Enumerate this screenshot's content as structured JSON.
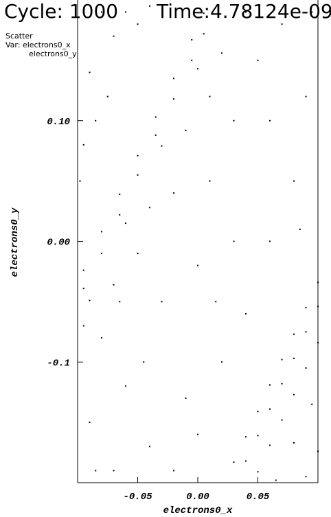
{
  "chart_data": {
    "type": "scatter",
    "title": "Cycle: 1000",
    "subtitle": "Time:4.78124e-09",
    "annotations": [
      "Scatter",
      "Var: electrons0_x",
      "electrons0_y"
    ],
    "xlabel": "electrons0_x",
    "ylabel": "electrons0_y",
    "xlim": [
      -0.1,
      0.1
    ],
    "ylim": [
      -0.2,
      0.2
    ],
    "xticks": [
      -0.05,
      {
        "value": 0,
        "label": "0.00"
      },
      0.05
    ],
    "yticks": [
      -0.1,
      {
        "value": 0,
        "label": "0.00"
      },
      {
        "value": 0.1,
        "label": "0.10"
      }
    ],
    "color": "#000000",
    "x": [
      -0.095,
      -0.095,
      -0.08,
      -0.08,
      -0.065,
      -0.065,
      -0.05,
      -0.05,
      -0.035,
      -0.035,
      -0.02,
      -0.02,
      -0.005,
      -0.005,
      0.005,
      0.005,
      -0.09,
      -0.06,
      -0.03,
      0,
      -0.07,
      -0.04,
      -0.01,
      0.02,
      -0.09,
      -0.07,
      -0.08,
      -0.06,
      -0.04,
      -0.03,
      -0.01,
      0,
      0.01,
      0.03,
      0.05,
      0.07,
      0.09,
      0.08,
      0.06,
      0.04,
      0.02,
      0,
      -0.02,
      0.095,
      0.085,
      0.03,
      -0.05,
      -0.02,
      0.01,
      0.04,
      0.06,
      -0.085,
      -0.095,
      -0.065,
      0.015,
      -0.045,
      -0.095,
      -0.09,
      -0.08,
      -0.07,
      -0.06,
      -0.085,
      -0.098,
      -0.05,
      -0.075,
      -0.04,
      0.1,
      0.1,
      0.1,
      0.09,
      0.09,
      0.09,
      0.08,
      0.08,
      0.08,
      0.07,
      0.07,
      0.07,
      0.06,
      0.06,
      0.06,
      0.05,
      0.05,
      0.05,
      0.04,
      0.04,
      0.03,
      0.095,
      0.08,
      0.065,
      0.09,
      0.1
    ],
    "y": [
      -0.024,
      -0.039,
      0.008,
      -0.01,
      0.039,
      0.022,
      0.071,
      0.055,
      0.103,
      0.088,
      0.135,
      0.118,
      0.167,
      0.15,
      0.189,
      0.172,
      -0.049,
      0.015,
      0.079,
      0.143,
      -0.036,
      0.028,
      0.092,
      0.156,
      -0.15,
      -0.19,
      -0.08,
      -0.12,
      -0.17,
      -0.05,
      -0.13,
      -0.02,
      0.05,
      0.1,
      0.15,
      0.18,
      0.12,
      0.05,
      0,
      -0.06,
      -0.1,
      -0.16,
      -0.19,
      0.19,
      0.01,
      0,
      -0.01,
      0.04,
      0.12,
      0.19,
      0.1,
      -0.19,
      -0.07,
      -0.05,
      -0.05,
      -0.1,
      0.08,
      0.14,
      0.19,
      0.17,
      0.19,
      0.1,
      0.05,
      0.18,
      0.12,
      0.195,
      -0.034,
      -0.054,
      -0.084,
      -0.055,
      -0.075,
      -0.105,
      -0.077,
      -0.097,
      -0.127,
      -0.098,
      -0.118,
      -0.148,
      -0.119,
      -0.139,
      -0.169,
      -0.141,
      -0.161,
      -0.191,
      -0.162,
      -0.182,
      -0.183,
      -0.135,
      -0.167,
      -0.198,
      -0.195,
      -0.174
    ]
  }
}
